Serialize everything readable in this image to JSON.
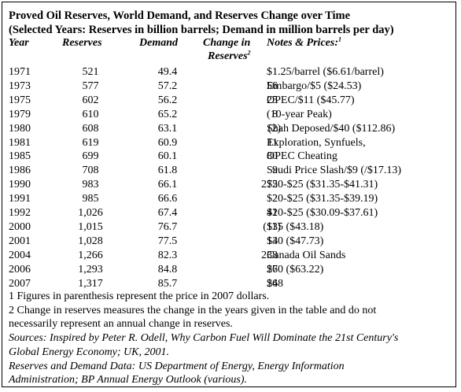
{
  "title_line1": "Proved Oil Reserves, World Demand, and Reserves Change over Time",
  "title_line2": "(Selected Years: Reserves in billion barrels; Demand in million barrels per day)",
  "headers": {
    "year": "Year",
    "reserves": "Reserves",
    "demand": "Demand",
    "change_line1": "Change in",
    "change_line2": "Reserves",
    "change_sup": "2",
    "notes": "Notes & Prices:",
    "notes_sup": "1"
  },
  "rows": [
    {
      "year": "1971",
      "reserves": "521",
      "demand": "49.4",
      "change": "",
      "notes": "$1.25/barrel ($6.61/barrel)"
    },
    {
      "year": "1973",
      "reserves": "577",
      "demand": "57.2",
      "change": "56",
      "notes": "Embargo/$5 ($24.53)"
    },
    {
      "year": "1975",
      "reserves": "602",
      "demand": "56.2",
      "change": "25",
      "notes": "OPEC/$11   ($45.77)"
    },
    {
      "year": "1979",
      "reserves": "610",
      "demand": "65.2",
      "change": "8",
      "notes": "(10-year Peak)"
    },
    {
      "year": "1980",
      "reserves": "608",
      "demand": "63.1",
      "change": "(2)",
      "notes": "Shah Deposed/$40 ($112.86)"
    },
    {
      "year": "1981",
      "reserves": "619",
      "demand": "60.9",
      "change": "11",
      "notes": "Exploration, Synfuels,"
    },
    {
      "year": "1985",
      "reserves": "699",
      "demand": "60.1",
      "change": "80",
      "notes": "OPEC Cheating"
    },
    {
      "year": "1986",
      "reserves": "708",
      "demand": "61.8",
      "change": "9",
      "notes": "Saudi Price Slash/$9 (/$17.13)"
    },
    {
      "year": "1990",
      "reserves": "983",
      "demand": "66.1",
      "change": "275",
      "notes": "$20-$25 ($31.35-$41.31)"
    },
    {
      "year": "1991",
      "reserves": "985",
      "demand": "66.6",
      "change": "2",
      "notes": "$20-$25 ($31.35-$39.19)"
    },
    {
      "year": "1992",
      "reserves": "1,026",
      "demand": "67.4",
      "change": "41",
      "notes": "$20-$25 ($30.09-$37.61)"
    },
    {
      "year": "2000",
      "reserves": "1,015",
      "demand": "76.7",
      "change": "(11)",
      "notes": "$35 ($43.18)"
    },
    {
      "year": "2001",
      "reserves": "1,028",
      "demand": "77.5",
      "change": "13",
      "notes": "$40 ($47.73)"
    },
    {
      "year": "2004",
      "reserves": "1,266",
      "demand": "82.3",
      "change": "238",
      "notes": "Canada Oil Sands"
    },
    {
      "year": "2006",
      "reserves": "1,293",
      "demand": "84.8",
      "change": "27",
      "notes": "$60 ($63.22)"
    },
    {
      "year": "2007",
      "reserves": "1,317",
      "demand": "85.7",
      "change": "24",
      "notes": "$68"
    }
  ],
  "footnotes": {
    "note1": "1 Figures in parenthesis represent the price in 2007 dollars.",
    "note2_line1": "2 Change in reserves measures the change in the years given in the table and do not",
    "note2_line2": "necessarily represent an annual change in reserves.",
    "sources_line1": "Sources: Inspired by Peter R. Odell, Why Carbon Fuel Will Dominate the 21st Century's",
    "sources_line2": "Global Energy Economy; UK, 2001.",
    "data_line1": "Reserves and Demand Data: US Department of Energy, Energy Information",
    "data_line2": "Administration; BP Annual Energy Outlook (various)."
  }
}
